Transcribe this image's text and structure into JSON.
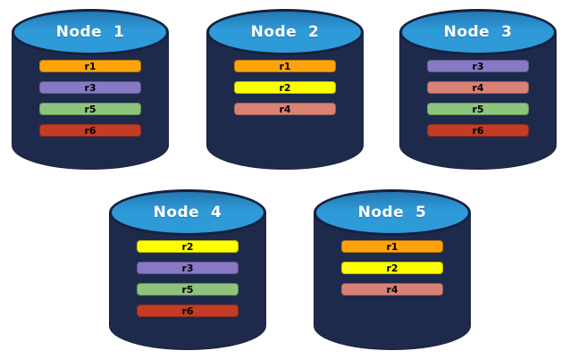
{
  "diagram": {
    "colors": {
      "cylinder_body": "#1E2A4C",
      "cylinder_outline": "#14213E",
      "cylinder_top_blue": "#2F9AD8",
      "node_label_text": "#FFFFFF",
      "bar_label_text": "#000000"
    },
    "replica_colors": {
      "r1": "#FFA30D",
      "r2": "#FDFF00",
      "r3": "#8779C3",
      "r4": "#D98174",
      "r5": "#8DC47C",
      "r6": "#C43C24"
    },
    "nodes": [
      {
        "label": "Node  1",
        "replicas": [
          "r1",
          "r3",
          "r5",
          "r6"
        ]
      },
      {
        "label": "Node  2",
        "replicas": [
          "r1",
          "r2",
          "r4"
        ]
      },
      {
        "label": "Node  3",
        "replicas": [
          "r3",
          "r4",
          "r5",
          "r6"
        ]
      },
      {
        "label": "Node  4",
        "replicas": [
          "r2",
          "r3",
          "r5",
          "r6"
        ]
      },
      {
        "label": "Node  5",
        "replicas": [
          "r1",
          "r2",
          "r4"
        ]
      }
    ]
  }
}
